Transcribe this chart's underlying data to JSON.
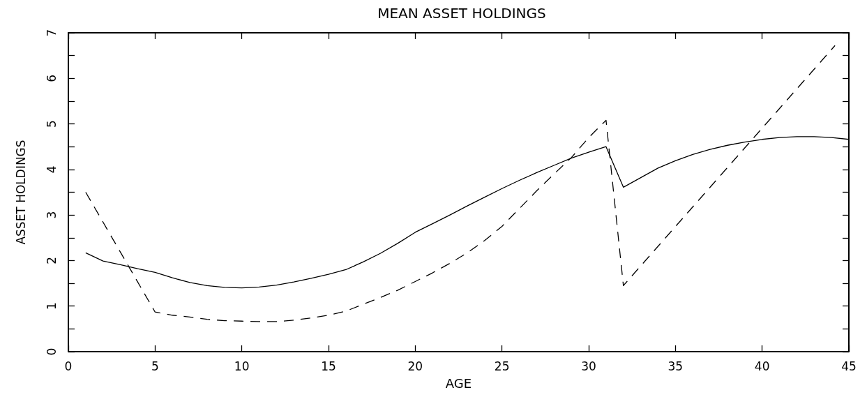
{
  "chart_data": {
    "type": "line",
    "title": "MEAN ASSET HOLDINGS",
    "xlabel": "AGE",
    "ylabel": "ASSET HOLDINGS",
    "xlim": [
      0,
      45
    ],
    "ylim": [
      0,
      7
    ],
    "xticks": [
      0,
      5,
      10,
      15,
      20,
      25,
      30,
      35,
      40,
      45
    ],
    "yticks": [
      0,
      {
        "value": 0.5,
        "label": null
      },
      1,
      {
        "value": 1.5,
        "label": null
      },
      2,
      {
        "value": 2.5,
        "label": null
      },
      3,
      {
        "value": 3.5,
        "label": null
      },
      4,
      {
        "value": 4.5,
        "label": null
      },
      5,
      {
        "value": 5.5,
        "label": null
      },
      6,
      {
        "value": 6.5,
        "label": null
      },
      7
    ],
    "marker": "none",
    "series": [
      {
        "color": "#000000",
        "line_style": "solid",
        "x": [
          1,
          2,
          3,
          4,
          5,
          6,
          7,
          8,
          9,
          10,
          11,
          12,
          13,
          14,
          15,
          16,
          17,
          18,
          19,
          20,
          21,
          22,
          23,
          24,
          25,
          26,
          27,
          28,
          29,
          30,
          31,
          32,
          33,
          34,
          35,
          36,
          37,
          38,
          39,
          40,
          41,
          42,
          43,
          44,
          45
        ],
        "values": [
          2.17,
          1.99,
          1.91,
          1.82,
          1.74,
          1.62,
          1.52,
          1.45,
          1.41,
          1.4,
          1.42,
          1.46,
          1.53,
          1.61,
          1.7,
          1.8,
          1.97,
          2.16,
          2.38,
          2.62,
          2.81,
          3.0,
          3.2,
          3.39,
          3.58,
          3.76,
          3.93,
          4.09,
          4.25,
          4.38,
          4.5,
          3.61,
          3.82,
          4.03,
          4.19,
          4.33,
          4.44,
          4.53,
          4.6,
          4.66,
          4.7,
          4.72,
          4.72,
          4.7,
          4.66
        ]
      },
      {
        "color": "#000000",
        "line_style": "dashed",
        "x": [
          1,
          5,
          6,
          7,
          8,
          9,
          10,
          11,
          12,
          13,
          14,
          15,
          16,
          17,
          18,
          19,
          20,
          21,
          22,
          23,
          24,
          25,
          26,
          27,
          28,
          29,
          30,
          31,
          32,
          44.2
        ],
        "values": [
          3.5,
          0.87,
          0.8,
          0.76,
          0.71,
          0.68,
          0.67,
          0.66,
          0.66,
          0.69,
          0.74,
          0.8,
          0.89,
          1.04,
          1.19,
          1.35,
          1.54,
          1.73,
          1.94,
          2.17,
          2.44,
          2.75,
          3.14,
          3.53,
          3.9,
          4.26,
          4.7,
          5.08,
          1.45,
          6.72
        ]
      }
    ]
  }
}
